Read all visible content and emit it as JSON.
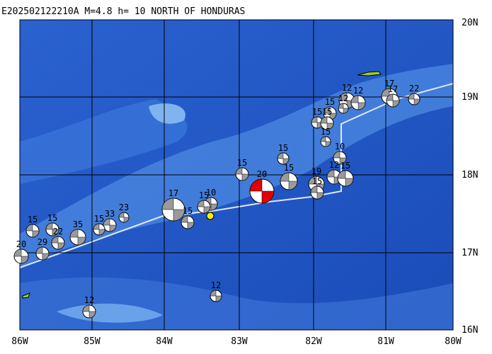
{
  "header": {
    "title": "E202502122210A  M=4.8  h= 10 NORTH OF HONDURAS"
  },
  "axes": {
    "x_labels": [
      "86W",
      "85W",
      "84W",
      "83W",
      "82W",
      "81W",
      "80W"
    ],
    "y_labels": [
      "20N",
      "19N",
      "18N",
      "17N",
      "16N"
    ]
  },
  "events": [
    {
      "label": "12"
    },
    {
      "label": "12"
    },
    {
      "label": "15"
    },
    {
      "label": "20"
    },
    {
      "label": "15"
    },
    {
      "label": "15"
    },
    {
      "label": "17"
    },
    {
      "label": "15"
    },
    {
      "label": "10"
    },
    {
      "label": "15"
    },
    {
      "label": "23"
    },
    {
      "label": "33"
    },
    {
      "label": "15"
    },
    {
      "label": "35"
    },
    {
      "label": "15"
    },
    {
      "label": "15"
    },
    {
      "label": "22"
    },
    {
      "label": "20"
    },
    {
      "label": "12"
    },
    {
      "label": "15"
    },
    {
      "label": "12"
    },
    {
      "label": "17"
    },
    {
      "label": "22"
    },
    {
      "label": "15"
    },
    {
      "label": "15"
    },
    {
      "label": "10"
    },
    {
      "label": "12"
    },
    {
      "label": "15"
    },
    {
      "label": "19"
    },
    {
      "label": "15"
    },
    {
      "label": "12"
    },
    {
      "label": "17"
    },
    {
      "label": "15"
    },
    {
      "label": "29"
    }
  ]
}
